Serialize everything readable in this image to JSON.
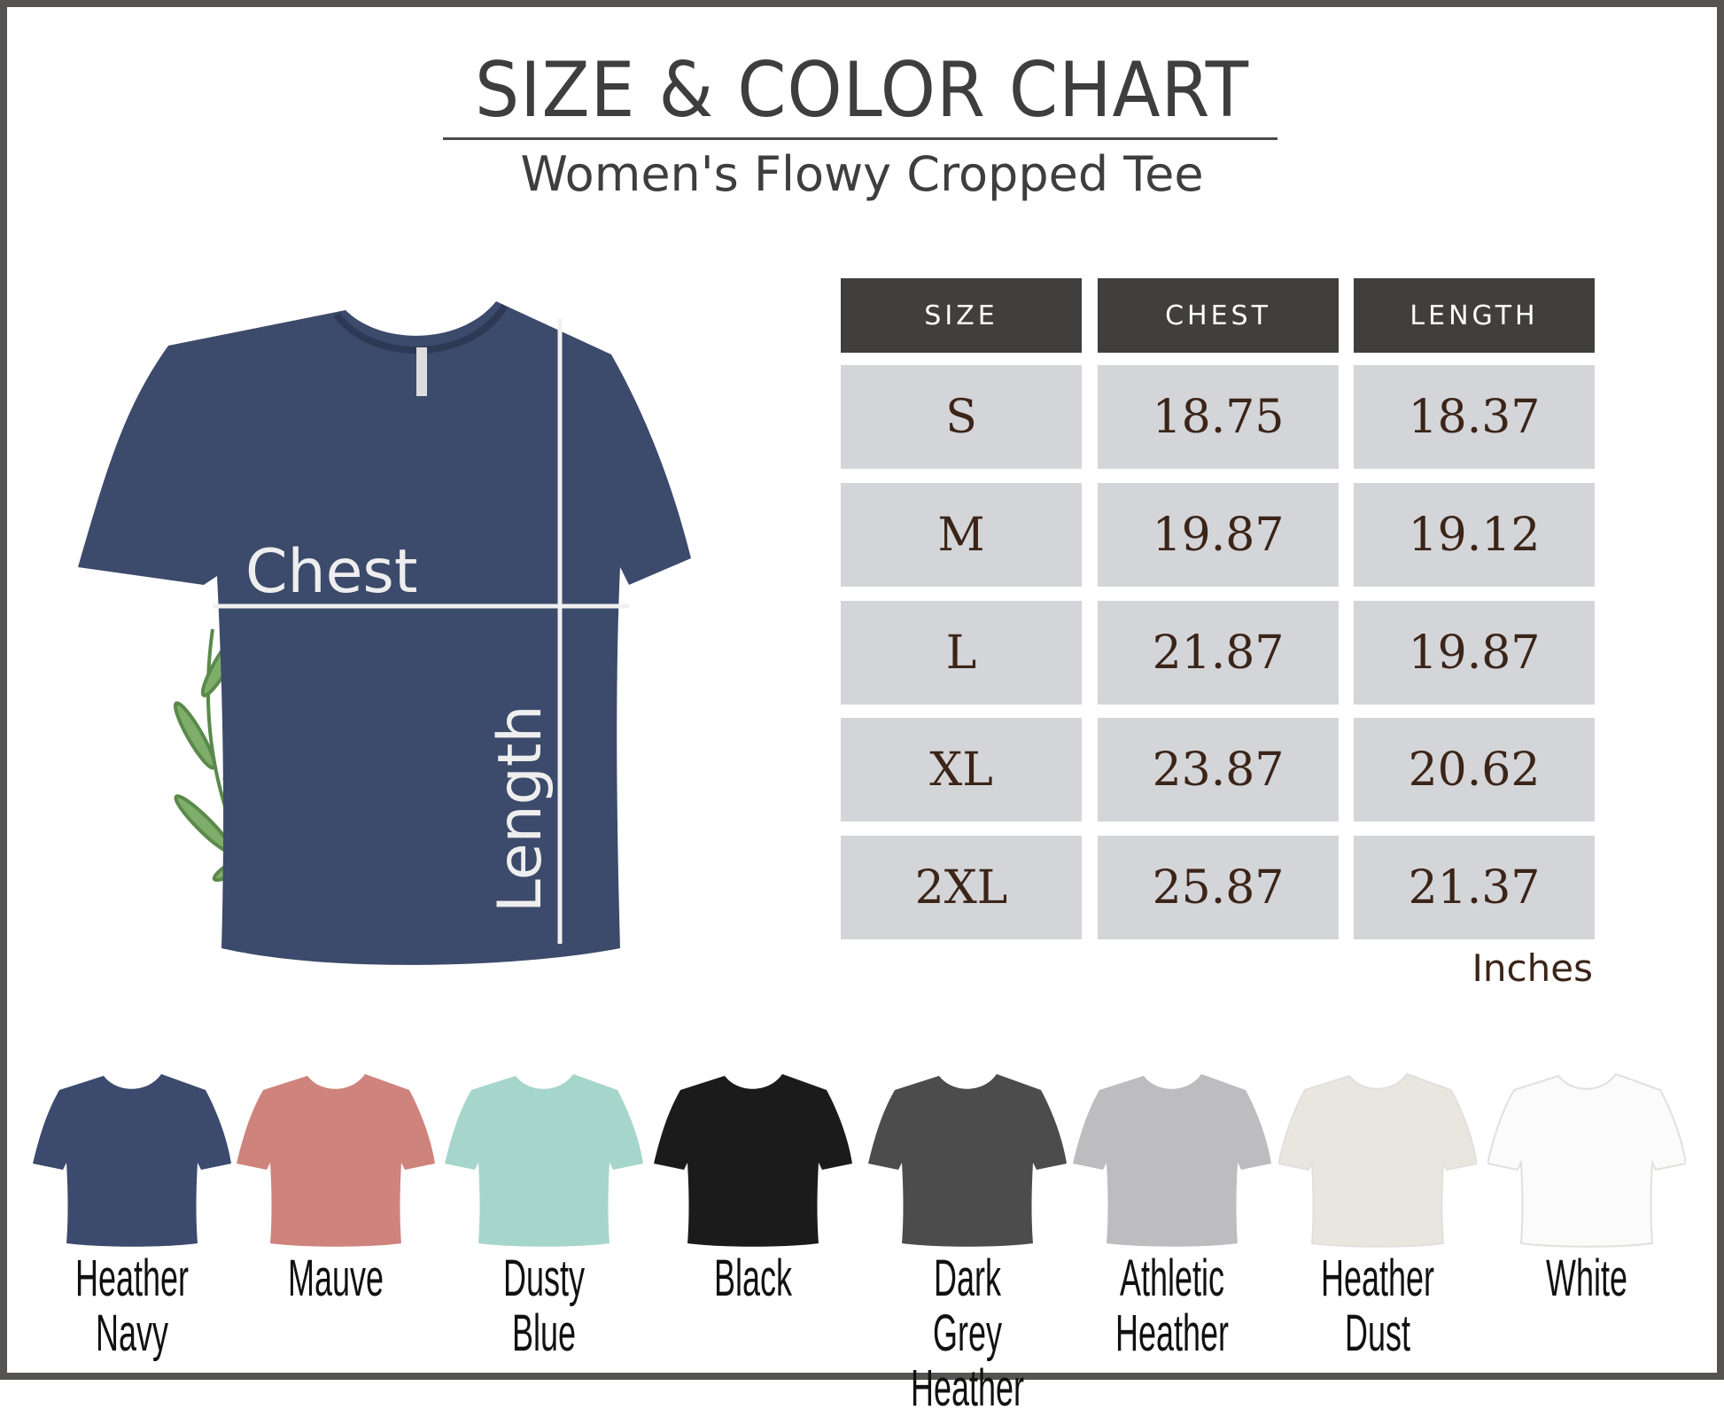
{
  "header": {
    "title": "SIZE & COLOR CHART",
    "subtitle": "Women's Flowy Cropped Tee"
  },
  "diagram": {
    "chest_label": "Chest",
    "length_label": "Length",
    "shirt_color": "#3c4a6b"
  },
  "table": {
    "columns": [
      "SIZE",
      "CHEST",
      "LENGTH"
    ],
    "rows": [
      [
        "S",
        "18.75",
        "18.37"
      ],
      [
        "M",
        "19.87",
        "19.12"
      ],
      [
        "L",
        "21.87",
        "19.87"
      ],
      [
        "XL",
        "23.87",
        "20.62"
      ],
      [
        "2XL",
        "25.87",
        "21.37"
      ]
    ],
    "unit": "Inches"
  },
  "colors": [
    {
      "name": "Heather Navy",
      "line1": "Heather",
      "line2": "Navy",
      "hex": "#3b4a6d"
    },
    {
      "name": "Mauve",
      "line1": "Mauve",
      "line2": "",
      "hex": "#cf837d"
    },
    {
      "name": "Dusty Blue",
      "line1": "Dusty",
      "line2": "Blue",
      "hex": "#a6d6cb"
    },
    {
      "name": "Black",
      "line1": "Black",
      "line2": "",
      "hex": "#1b1b1c"
    },
    {
      "name": "Dark Grey Heather",
      "line1": "Dark Grey",
      "line2": "Heather",
      "hex": "#4d4c4c"
    },
    {
      "name": "Athletic Heather",
      "line1": "Athletic",
      "line2": "Heather",
      "hex": "#bdbdbf"
    },
    {
      "name": "Heather Dust",
      "line1": "Heather",
      "line2": "Dust",
      "hex": "#e9e5df"
    },
    {
      "name": "White",
      "line1": "White",
      "line2": "",
      "hex": "#fbfbfb"
    }
  ]
}
